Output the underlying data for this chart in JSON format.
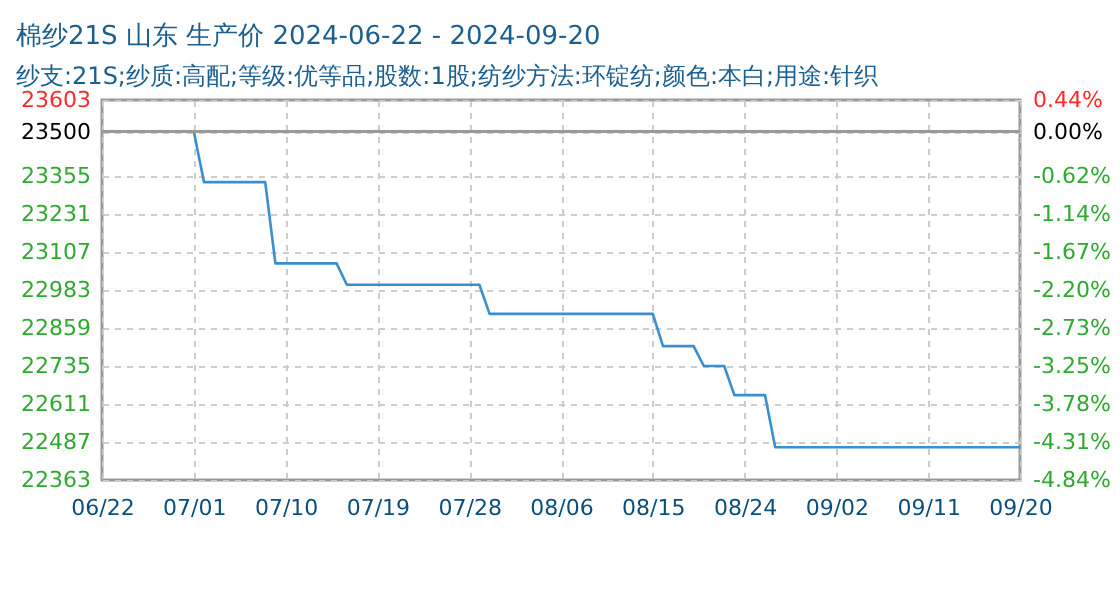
{
  "chart_data": {
    "type": "line",
    "title": "棉纱21S 山东 生产价 2024-06-22 - 2024-09-20",
    "subtitle": "纱支:21S;纱质:高配;等级:优等品;股数:1股;纺纱方法:环锭纺;颜色:本白;用途:针织",
    "x": [
      "2024-06-22",
      "2024-07-01",
      "2024-07-02",
      "2024-07-08",
      "2024-07-09",
      "2024-07-15",
      "2024-07-16",
      "2024-07-29",
      "2024-07-30",
      "2024-08-15",
      "2024-08-16",
      "2024-08-19",
      "2024-08-20",
      "2024-08-22",
      "2024-08-23",
      "2024-08-26",
      "2024-08-27",
      "2024-09-20"
    ],
    "series": [
      {
        "color": "#3a8fd0",
        "values": [
          23500,
          23500,
          23335,
          23335,
          23070,
          23070,
          23000,
          23000,
          22905,
          22905,
          22800,
          22800,
          22735,
          22735,
          22640,
          22640,
          22470,
          22470
        ]
      }
    ],
    "xlim": [
      "2024-06-22",
      "2024-09-20"
    ],
    "xticks": [
      {
        "value": "2024-06-22",
        "label": "06/22"
      },
      {
        "value": "2024-07-01",
        "label": "07/01"
      },
      {
        "value": "2024-07-10",
        "label": "07/10"
      },
      {
        "value": "2024-07-19",
        "label": "07/19"
      },
      {
        "value": "2024-07-28",
        "label": "07/28"
      },
      {
        "value": "2024-08-06",
        "label": "08/06"
      },
      {
        "value": "2024-08-15",
        "label": "08/15"
      },
      {
        "value": "2024-08-24",
        "label": "08/24"
      },
      {
        "value": "2024-09-02",
        "label": "09/02"
      },
      {
        "value": "2024-09-11",
        "label": "09/11"
      },
      {
        "value": "2024-09-20",
        "label": "09/20"
      }
    ],
    "ylim": [
      22363,
      23603
    ],
    "yticks": [
      22363,
      22487,
      22611,
      22735,
      22859,
      22983,
      23107,
      23231,
      23355,
      23500,
      23603
    ],
    "y2lim": [
      -4.84,
      0.44
    ],
    "y2ticks": [
      {
        "value": -4.84,
        "label": "-4.84%"
      },
      {
        "value": -4.31,
        "label": "-4.31%"
      },
      {
        "value": -3.78,
        "label": "-3.78%"
      },
      {
        "value": -3.25,
        "label": "-3.25%"
      },
      {
        "value": -2.73,
        "label": "-2.73%"
      },
      {
        "value": -2.2,
        "label": "-2.20%"
      },
      {
        "value": -1.67,
        "label": "-1.67%"
      },
      {
        "value": -1.14,
        "label": "-1.14%"
      },
      {
        "value": -0.62,
        "label": "-0.62%"
      },
      {
        "value": 0,
        "label": "0.00%"
      },
      {
        "value": 0.44,
        "label": "0.44%"
      }
    ],
    "ref_lines": [
      {
        "axis": "y",
        "value": 23500,
        "color": "#999999"
      }
    ],
    "grid": true
  }
}
